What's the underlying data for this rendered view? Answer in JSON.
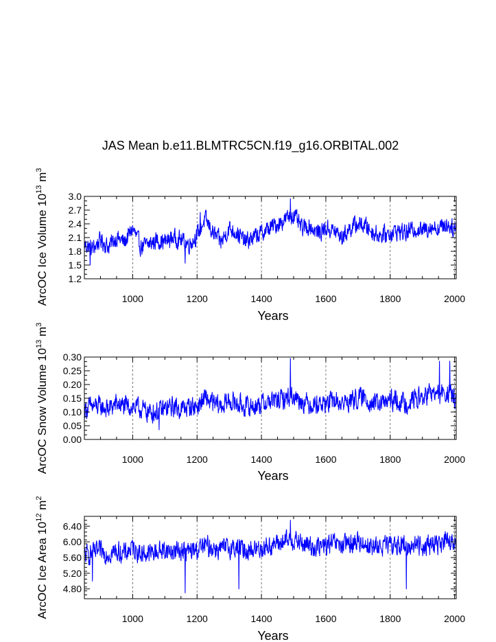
{
  "title": "JAS Mean b.e11.BLMTRC5CN.f19_g16.ORBITAL.002",
  "colors": {
    "series": "#0000ff",
    "axis": "#000000",
    "grid": "#555555"
  },
  "chart_data": [
    {
      "type": "line",
      "name": "ice-volume",
      "xlabel": "Years",
      "ylabel": "ArcOC Ice Volume 10",
      "ylabel_exp": "13",
      "ylabel_unit": "m",
      "ylabel_unit_exp": "3",
      "xlim": [
        850,
        2005
      ],
      "ylim": [
        1.2,
        3.0
      ],
      "xticks": [
        1000,
        1200,
        1400,
        1600,
        1800,
        2000
      ],
      "ytick_labels": [
        "1.2",
        "1.5",
        "1.8",
        "2.1",
        "2.4",
        "2.7",
        "3.0"
      ],
      "grid": "vertical dashed at major x ticks",
      "series": [
        {
          "name": "ice volume",
          "x": [
            850,
            875,
            900,
            925,
            950,
            975,
            1000,
            1025,
            1050,
            1075,
            1100,
            1125,
            1150,
            1175,
            1200,
            1225,
            1250,
            1275,
            1300,
            1325,
            1350,
            1375,
            1400,
            1425,
            1450,
            1475,
            1500,
            1525,
            1550,
            1575,
            1600,
            1625,
            1650,
            1675,
            1700,
            1725,
            1750,
            1775,
            1800,
            1825,
            1850,
            1875,
            1900,
            1925,
            1950,
            1975,
            2000
          ],
          "values": [
            1.95,
            1.85,
            2.05,
            1.9,
            2.1,
            2.0,
            2.3,
            1.9,
            1.95,
            2.05,
            2.0,
            2.1,
            2.05,
            1.95,
            2.15,
            2.5,
            2.2,
            2.0,
            2.3,
            2.2,
            2.0,
            2.1,
            2.2,
            2.3,
            2.4,
            2.5,
            2.6,
            2.3,
            2.35,
            2.2,
            2.3,
            2.25,
            2.1,
            2.3,
            2.4,
            2.35,
            2.2,
            2.15,
            2.2,
            2.25,
            2.2,
            2.3,
            2.25,
            2.35,
            2.3,
            2.4,
            2.3
          ],
          "noise": 0.26,
          "extremes": [
            [
              1163,
              1.54
            ],
            [
              1490,
              2.95
            ],
            [
              868,
              1.5
            ],
            [
              1210,
              2.65
            ]
          ]
        }
      ]
    },
    {
      "type": "line",
      "name": "snow-volume",
      "xlabel": "Years",
      "ylabel": "ArcOC Snow Volume 10",
      "ylabel_exp": "13",
      "ylabel_unit": "m",
      "ylabel_unit_exp": "3",
      "xlim": [
        850,
        2005
      ],
      "ylim": [
        0.0,
        0.3
      ],
      "xticks": [
        1000,
        1200,
        1400,
        1600,
        1800,
        2000
      ],
      "ytick_labels": [
        "0.00",
        "0.05",
        "0.10",
        "0.15",
        "0.20",
        "0.25",
        "0.30"
      ],
      "grid": "vertical dashed at major x ticks",
      "series": [
        {
          "name": "snow volume",
          "x": [
            850,
            875,
            900,
            925,
            950,
            975,
            1000,
            1025,
            1050,
            1075,
            1100,
            1125,
            1150,
            1175,
            1200,
            1225,
            1250,
            1275,
            1300,
            1325,
            1350,
            1375,
            1400,
            1425,
            1450,
            1475,
            1500,
            1525,
            1550,
            1575,
            1600,
            1625,
            1650,
            1675,
            1700,
            1725,
            1750,
            1775,
            1800,
            1825,
            1850,
            1875,
            1900,
            1925,
            1950,
            1975,
            2000
          ],
          "values": [
            0.11,
            0.12,
            0.12,
            0.11,
            0.13,
            0.12,
            0.12,
            0.11,
            0.1,
            0.1,
            0.11,
            0.12,
            0.11,
            0.12,
            0.12,
            0.15,
            0.13,
            0.12,
            0.14,
            0.13,
            0.12,
            0.12,
            0.13,
            0.14,
            0.14,
            0.15,
            0.16,
            0.14,
            0.13,
            0.13,
            0.13,
            0.14,
            0.13,
            0.14,
            0.15,
            0.15,
            0.13,
            0.13,
            0.14,
            0.14,
            0.13,
            0.15,
            0.15,
            0.17,
            0.16,
            0.17,
            0.15
          ],
          "noise": 0.05,
          "extremes": [
            [
              1490,
              0.295
            ],
            [
              1082,
              0.035
            ],
            [
              1953,
              0.285
            ],
            [
              1985,
              0.285
            ]
          ]
        }
      ]
    },
    {
      "type": "line",
      "name": "ice-area",
      "xlabel": "Years",
      "ylabel": "ArcOC Ice Area 10",
      "ylabel_exp": "12",
      "ylabel_unit": "m",
      "ylabel_unit_exp": "2",
      "xlim": [
        850,
        2005
      ],
      "ylim": [
        4.55,
        6.65
      ],
      "xticks": [
        1000,
        1200,
        1400,
        1600,
        1800,
        2000
      ],
      "ytick_values": [
        4.8,
        5.2,
        5.6,
        6.0,
        6.4
      ],
      "ytick_labels": [
        "4.80",
        "5.20",
        "5.60",
        "6.00",
        "6.40"
      ],
      "grid": "vertical dashed at major x ticks",
      "series": [
        {
          "name": "ice area",
          "x": [
            850,
            875,
            900,
            925,
            950,
            975,
            1000,
            1025,
            1050,
            1075,
            1100,
            1125,
            1150,
            1175,
            1200,
            1225,
            1250,
            1275,
            1300,
            1325,
            1350,
            1375,
            1400,
            1425,
            1450,
            1475,
            1500,
            1525,
            1550,
            1575,
            1600,
            1625,
            1650,
            1675,
            1700,
            1725,
            1750,
            1775,
            1800,
            1825,
            1850,
            1875,
            1900,
            1925,
            1950,
            1975,
            2000
          ],
          "values": [
            5.65,
            5.7,
            5.75,
            5.7,
            5.75,
            5.7,
            5.85,
            5.7,
            5.7,
            5.75,
            5.8,
            5.75,
            5.8,
            5.75,
            5.8,
            5.9,
            5.85,
            5.8,
            5.85,
            5.85,
            5.8,
            5.8,
            5.85,
            5.9,
            5.95,
            6.0,
            6.05,
            5.95,
            5.9,
            5.85,
            5.9,
            5.95,
            5.9,
            5.95,
            6.0,
            5.95,
            5.85,
            5.9,
            5.9,
            5.95,
            5.85,
            5.95,
            5.9,
            5.95,
            5.95,
            6.0,
            5.9
          ],
          "noise": 0.35,
          "extremes": [
            [
              1490,
              6.55
            ],
            [
              1163,
              4.7
            ],
            [
              1330,
              4.8
            ],
            [
              1850,
              4.8
            ],
            [
              875,
              5.0
            ]
          ]
        }
      ]
    }
  ]
}
